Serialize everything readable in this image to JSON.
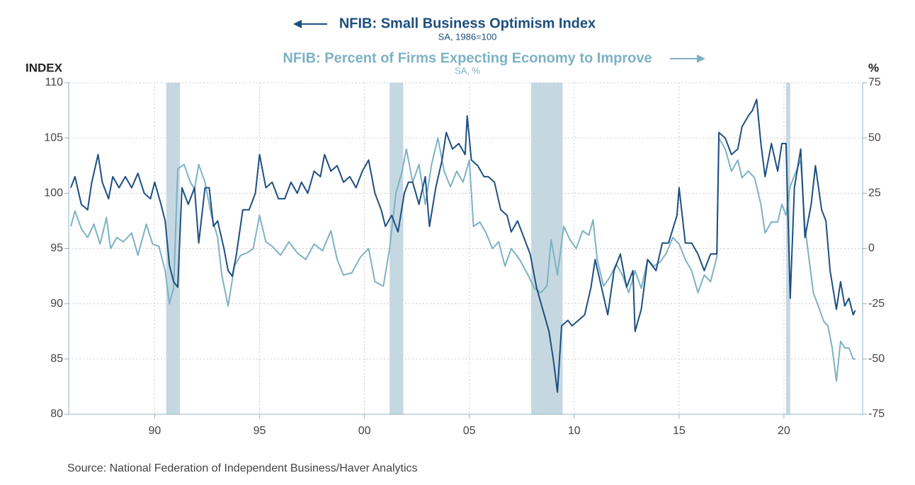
{
  "chart_data": {
    "type": "line",
    "y_label": "INDEX",
    "y2_label": "%",
    "source": "Source:  National Federation of Independent Business/Haver Analytics",
    "xlim": [
      1985.9,
      2023.75
    ],
    "xticks": [
      {
        "value": 1990,
        "label": "90"
      },
      {
        "value": 1995,
        "label": "95"
      },
      {
        "value": 2000,
        "label": "00"
      },
      {
        "value": 2005,
        "label": "05"
      },
      {
        "value": 2010,
        "label": "10"
      },
      {
        "value": 2015,
        "label": "15"
      },
      {
        "value": 2020,
        "label": "20"
      }
    ],
    "ylim": [
      80,
      110
    ],
    "yticks": [
      80,
      85,
      90,
      95,
      100,
      105,
      110
    ],
    "y2lim": [
      -75,
      75
    ],
    "y2ticks": [
      -75,
      -50,
      -25,
      0,
      25,
      50,
      75
    ],
    "grid": true,
    "recessions": [
      [
        1990.55,
        1991.2
      ],
      [
        2001.2,
        2001.85
      ],
      [
        2007.95,
        2009.45
      ],
      [
        2020.1,
        2020.3
      ]
    ],
    "recession_color": "#c5d8e2",
    "series": [
      {
        "name": "NFIB: Small Business Optimism Index",
        "units": "SA, 1986=100",
        "color": "#1d4f80",
        "axis": "y",
        "x": [
          1986.0,
          1986.2,
          1986.5,
          1986.8,
          1987.0,
          1987.3,
          1987.5,
          1987.8,
          1988.0,
          1988.3,
          1988.6,
          1988.9,
          1989.2,
          1989.5,
          1989.8,
          1990.0,
          1990.3,
          1990.5,
          1990.7,
          1990.9,
          1991.1,
          1991.3,
          1991.6,
          1991.9,
          1992.1,
          1992.4,
          1992.6,
          1992.8,
          1993.0,
          1993.3,
          1993.5,
          1993.7,
          1993.9,
          1994.2,
          1994.5,
          1994.8,
          1995.0,
          1995.3,
          1995.6,
          1995.9,
          1996.2,
          1996.5,
          1996.8,
          1997.0,
          1997.3,
          1997.6,
          1997.9,
          1998.1,
          1998.4,
          1998.7,
          1999.0,
          1999.3,
          1999.6,
          1999.9,
          2000.2,
          2000.5,
          2000.8,
          2001.0,
          2001.3,
          2001.6,
          2001.9,
          2002.1,
          2002.3,
          2002.6,
          2002.9,
          2003.1,
          2003.4,
          2003.7,
          2003.9,
          2004.2,
          2004.5,
          2004.8,
          2004.9,
          2005.1,
          2005.4,
          2005.7,
          2005.9,
          2006.2,
          2006.5,
          2006.8,
          2007.0,
          2007.3,
          2007.6,
          2007.9,
          2008.2,
          2008.5,
          2008.8,
          2009.0,
          2009.2,
          2009.4,
          2009.7,
          2009.9,
          2010.2,
          2010.5,
          2010.8,
          2011.0,
          2011.3,
          2011.6,
          2011.9,
          2012.2,
          2012.5,
          2012.8,
          2012.9,
          2013.2,
          2013.5,
          2013.9,
          2014.2,
          2014.5,
          2014.9,
          2015.0,
          2015.3,
          2015.6,
          2015.9,
          2016.2,
          2016.5,
          2016.8,
          2016.9,
          2017.2,
          2017.5,
          2017.8,
          2018.0,
          2018.3,
          2018.5,
          2018.7,
          2018.9,
          2019.1,
          2019.4,
          2019.7,
          2019.9,
          2020.1,
          2020.3,
          2020.5,
          2020.8,
          2021.0,
          2021.3,
          2021.5,
          2021.8,
          2022.0,
          2022.2,
          2022.5,
          2022.7,
          2022.9,
          2023.1,
          2023.3,
          2023.4
        ],
        "values": [
          100.5,
          101.5,
          99,
          98.5,
          101,
          103.5,
          101,
          99.5,
          101.5,
          100.5,
          101.5,
          100.5,
          101.8,
          100,
          99.5,
          101,
          99,
          97.5,
          93.5,
          92,
          91.5,
          100.5,
          99,
          100.5,
          95.5,
          100.5,
          100.5,
          97,
          97.5,
          95,
          93,
          92.5,
          94.5,
          98.5,
          98.5,
          100,
          103.5,
          100.5,
          101,
          99.5,
          99.5,
          101,
          100,
          101,
          100,
          102,
          101.5,
          103.5,
          102,
          102.5,
          101,
          101.5,
          100.5,
          102,
          103,
          100,
          98.5,
          97,
          98,
          96.5,
          100,
          101,
          101,
          99,
          101.5,
          97,
          100.5,
          103,
          105.5,
          104,
          104.5,
          103.5,
          107,
          103,
          102.5,
          101.5,
          101.5,
          101,
          98.5,
          98,
          96.5,
          97.5,
          96,
          94.5,
          91.5,
          89.5,
          87.5,
          85,
          82,
          88,
          88.5,
          88,
          88.5,
          89,
          91.5,
          94,
          91.5,
          89,
          93,
          94.5,
          91.5,
          93,
          87.5,
          89.5,
          94,
          93,
          95.5,
          95.5,
          98,
          100.5,
          95.5,
          95.5,
          94.5,
          93,
          94.5,
          94.5,
          105.5,
          105,
          103.5,
          104,
          106,
          107,
          107.5,
          108.5,
          104.5,
          101.5,
          104.5,
          102,
          104.5,
          104.5,
          90.5,
          100.5,
          104,
          96,
          99,
          102.5,
          98.5,
          97.5,
          93,
          89.5,
          92,
          89.8,
          90.5,
          89,
          89.4
        ]
      },
      {
        "name": "NFIB: Percent of Firms Expecting Economy to Improve",
        "units": "SA, %",
        "color": "#7db2c4",
        "axis": "y2",
        "x": [
          1986.0,
          1986.2,
          1986.5,
          1986.8,
          1987.1,
          1987.4,
          1987.7,
          1987.9,
          1988.2,
          1988.5,
          1988.9,
          1989.2,
          1989.6,
          1989.9,
          1990.2,
          1990.5,
          1990.7,
          1990.9,
          1991.1,
          1991.4,
          1991.7,
          1991.9,
          1992.1,
          1992.4,
          1992.7,
          1993.0,
          1993.2,
          1993.5,
          1993.8,
          1994.1,
          1994.4,
          1994.7,
          1995.0,
          1995.3,
          1995.6,
          1996.0,
          1996.4,
          1996.8,
          1997.2,
          1997.6,
          1998.0,
          1998.4,
          1998.7,
          1999.0,
          1999.4,
          1999.8,
          2000.2,
          2000.5,
          2000.9,
          2001.2,
          2001.5,
          2001.8,
          2002.0,
          2002.3,
          2002.6,
          2002.9,
          2003.2,
          2003.5,
          2003.8,
          2004.1,
          2004.4,
          2004.7,
          2005.0,
          2005.2,
          2005.5,
          2005.8,
          2006.1,
          2006.4,
          2006.7,
          2007.0,
          2007.4,
          2007.8,
          2008.1,
          2008.4,
          2008.7,
          2008.9,
          2009.2,
          2009.5,
          2009.8,
          2010.1,
          2010.4,
          2010.7,
          2010.9,
          2011.1,
          2011.4,
          2011.7,
          2012.0,
          2012.3,
          2012.6,
          2012.9,
          2013.2,
          2013.5,
          2013.8,
          2014.1,
          2014.4,
          2014.7,
          2015.0,
          2015.3,
          2015.6,
          2015.9,
          2016.2,
          2016.5,
          2016.8,
          2016.9,
          2017.2,
          2017.5,
          2017.8,
          2018.0,
          2018.3,
          2018.6,
          2018.9,
          2019.1,
          2019.4,
          2019.7,
          2019.9,
          2020.1,
          2020.3,
          2020.5,
          2020.8,
          2021.0,
          2021.2,
          2021.4,
          2021.6,
          2021.9,
          2022.1,
          2022.3,
          2022.5,
          2022.7,
          2022.9,
          2023.1,
          2023.3,
          2023.4
        ],
        "values": [
          10,
          17,
          9,
          5,
          11,
          2,
          14,
          0,
          5,
          3,
          7,
          -3,
          11,
          2,
          1,
          -10,
          -25,
          -18,
          36,
          38,
          30,
          27,
          38,
          30,
          15,
          5,
          -12,
          -26,
          -8,
          -3,
          -2,
          0,
          15,
          3,
          1,
          -3,
          3,
          -2,
          -5,
          2,
          -1,
          8,
          -5,
          -12,
          -11,
          -4,
          0,
          -15,
          -17,
          0,
          25,
          35,
          45,
          30,
          38,
          20,
          38,
          50,
          35,
          28,
          35,
          30,
          40,
          10,
          12,
          7,
          0,
          3,
          -8,
          0,
          -5,
          -12,
          -18,
          -20,
          -17,
          4,
          -12,
          10,
          4,
          0,
          8,
          6,
          13,
          -5,
          -17,
          -13,
          -7,
          -12,
          -20,
          -10,
          -18,
          -5,
          -8,
          -6,
          -2,
          5,
          2,
          -5,
          -10,
          -20,
          -12,
          -15,
          -4,
          50,
          45,
          35,
          40,
          32,
          35,
          32,
          20,
          7,
          12,
          12,
          20,
          15,
          28,
          33,
          40,
          10,
          -5,
          -20,
          -25,
          -33,
          -35,
          -45,
          -60,
          -42,
          -45,
          -45,
          -50,
          -50
        ]
      }
    ]
  }
}
